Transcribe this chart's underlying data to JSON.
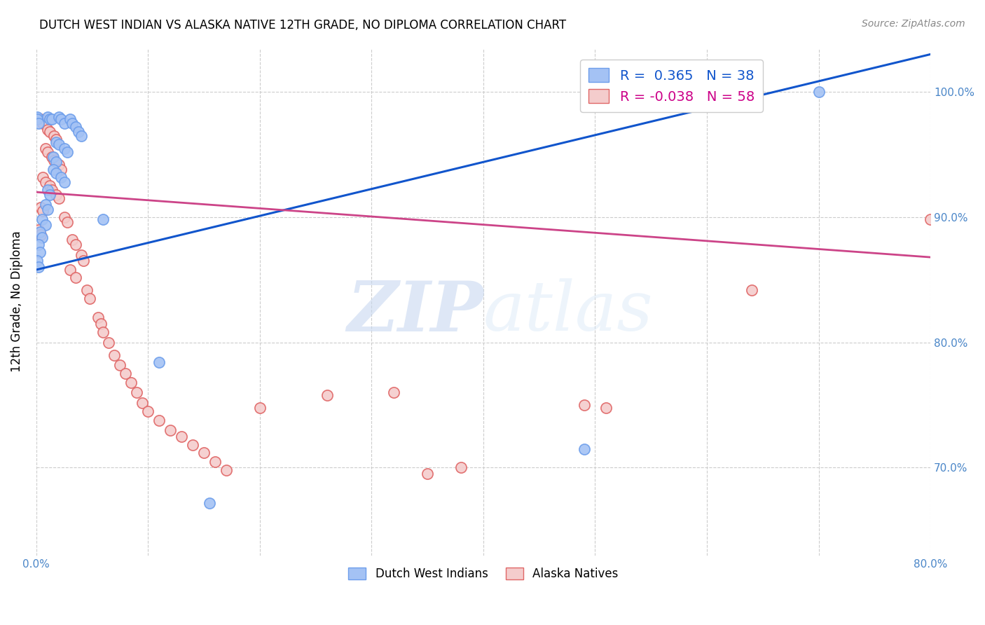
{
  "title": "DUTCH WEST INDIAN VS ALASKA NATIVE 12TH GRADE, NO DIPLOMA CORRELATION CHART",
  "source": "Source: ZipAtlas.com",
  "ylabel": "12th Grade, No Diploma",
  "xlim": [
    0.0,
    0.8
  ],
  "ylim": [
    0.63,
    1.035
  ],
  "xticks": [
    0.0,
    0.1,
    0.2,
    0.3,
    0.4,
    0.5,
    0.6,
    0.7,
    0.8
  ],
  "xticklabels": [
    "0.0%",
    "",
    "",
    "",
    "",
    "",
    "",
    "",
    "80.0%"
  ],
  "yticks": [
    0.7,
    0.8,
    0.9,
    1.0
  ],
  "yticklabels": [
    "70.0%",
    "80.0%",
    "90.0%",
    "100.0%"
  ],
  "blue_label": "Dutch West Indians",
  "pink_label": "Alaska Natives",
  "blue_color": "#a4c2f4",
  "pink_color": "#f4cccc",
  "blue_edge_color": "#6d9eeb",
  "pink_edge_color": "#e06666",
  "blue_line_color": "#1155cc",
  "pink_line_color": "#cc4488",
  "watermark_zip": "ZIP",
  "watermark_atlas": "atlas",
  "blue_dots": [
    [
      0.001,
      0.98
    ],
    [
      0.001,
      0.978
    ],
    [
      0.002,
      0.975
    ],
    [
      0.01,
      0.98
    ],
    [
      0.012,
      0.978
    ],
    [
      0.014,
      0.978
    ],
    [
      0.02,
      0.98
    ],
    [
      0.022,
      0.978
    ],
    [
      0.025,
      0.975
    ],
    [
      0.03,
      0.978
    ],
    [
      0.032,
      0.975
    ],
    [
      0.035,
      0.972
    ],
    [
      0.038,
      0.968
    ],
    [
      0.04,
      0.965
    ],
    [
      0.018,
      0.96
    ],
    [
      0.02,
      0.958
    ],
    [
      0.025,
      0.955
    ],
    [
      0.028,
      0.952
    ],
    [
      0.015,
      0.948
    ],
    [
      0.018,
      0.944
    ],
    [
      0.015,
      0.938
    ],
    [
      0.018,
      0.935
    ],
    [
      0.022,
      0.932
    ],
    [
      0.025,
      0.928
    ],
    [
      0.01,
      0.922
    ],
    [
      0.012,
      0.918
    ],
    [
      0.008,
      0.91
    ],
    [
      0.01,
      0.906
    ],
    [
      0.005,
      0.898
    ],
    [
      0.008,
      0.894
    ],
    [
      0.003,
      0.888
    ],
    [
      0.005,
      0.884
    ],
    [
      0.002,
      0.878
    ],
    [
      0.003,
      0.872
    ],
    [
      0.001,
      0.865
    ],
    [
      0.002,
      0.86
    ],
    [
      0.06,
      0.898
    ],
    [
      0.11,
      0.784
    ],
    [
      0.155,
      0.672
    ],
    [
      0.49,
      0.715
    ],
    [
      0.7,
      1.0
    ]
  ],
  "pink_dots": [
    [
      0.004,
      0.978
    ],
    [
      0.006,
      0.975
    ],
    [
      0.01,
      0.97
    ],
    [
      0.012,
      0.968
    ],
    [
      0.016,
      0.965
    ],
    [
      0.018,
      0.962
    ],
    [
      0.008,
      0.955
    ],
    [
      0.01,
      0.952
    ],
    [
      0.014,
      0.948
    ],
    [
      0.016,
      0.945
    ],
    [
      0.02,
      0.942
    ],
    [
      0.022,
      0.938
    ],
    [
      0.006,
      0.932
    ],
    [
      0.008,
      0.928
    ],
    [
      0.012,
      0.925
    ],
    [
      0.014,
      0.922
    ],
    [
      0.018,
      0.918
    ],
    [
      0.02,
      0.915
    ],
    [
      0.004,
      0.908
    ],
    [
      0.006,
      0.905
    ],
    [
      0.025,
      0.9
    ],
    [
      0.028,
      0.896
    ],
    [
      0.002,
      0.89
    ],
    [
      0.004,
      0.886
    ],
    [
      0.032,
      0.882
    ],
    [
      0.035,
      0.878
    ],
    [
      0.04,
      0.87
    ],
    [
      0.042,
      0.865
    ],
    [
      0.03,
      0.858
    ],
    [
      0.035,
      0.852
    ],
    [
      0.045,
      0.842
    ],
    [
      0.048,
      0.835
    ],
    [
      0.055,
      0.82
    ],
    [
      0.058,
      0.815
    ],
    [
      0.06,
      0.808
    ],
    [
      0.065,
      0.8
    ],
    [
      0.07,
      0.79
    ],
    [
      0.075,
      0.782
    ],
    [
      0.08,
      0.775
    ],
    [
      0.085,
      0.768
    ],
    [
      0.09,
      0.76
    ],
    [
      0.095,
      0.752
    ],
    [
      0.1,
      0.745
    ],
    [
      0.11,
      0.738
    ],
    [
      0.12,
      0.73
    ],
    [
      0.13,
      0.725
    ],
    [
      0.14,
      0.718
    ],
    [
      0.15,
      0.712
    ],
    [
      0.16,
      0.705
    ],
    [
      0.17,
      0.698
    ],
    [
      0.2,
      0.748
    ],
    [
      0.26,
      0.758
    ],
    [
      0.32,
      0.76
    ],
    [
      0.49,
      0.75
    ],
    [
      0.51,
      0.748
    ],
    [
      0.64,
      0.842
    ],
    [
      0.8,
      0.898
    ],
    [
      0.38,
      0.7
    ],
    [
      0.35,
      0.695
    ]
  ],
  "blue_line": {
    "x0": 0.0,
    "x1": 0.8,
    "y0": 0.858,
    "y1": 1.03
  },
  "pink_line": {
    "x0": 0.0,
    "x1": 0.8,
    "y0": 0.92,
    "y1": 0.868
  }
}
